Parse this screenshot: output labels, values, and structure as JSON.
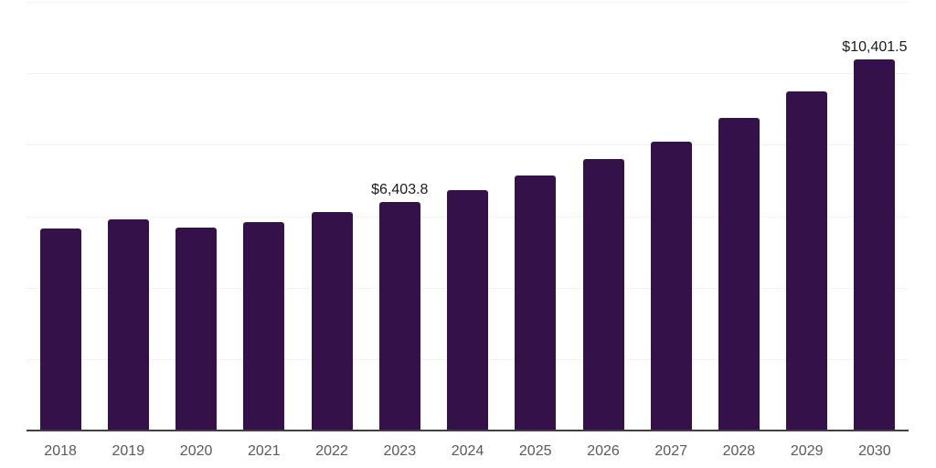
{
  "chart": {
    "bar_color": "#341149",
    "gridline_color": "#f2f2f2",
    "axis_color": "#404040",
    "tick_label_color": "#595959",
    "data_label_color": "#1a1a1a",
    "background_color": "#ffffff"
  },
  "chart_data": {
    "type": "bar",
    "title": "",
    "xlabel": "",
    "ylabel": "",
    "categories": [
      "2018",
      "2019",
      "2020",
      "2021",
      "2022",
      "2023",
      "2024",
      "2025",
      "2026",
      "2027",
      "2028",
      "2029",
      "2030"
    ],
    "values": [
      5660,
      5920,
      5690,
      5845,
      6125,
      6403.8,
      6740,
      7145,
      7605,
      8090,
      8750,
      9495,
      10401.5
    ],
    "data_labels": [
      null,
      null,
      null,
      null,
      null,
      "$6,403.8",
      null,
      null,
      null,
      null,
      null,
      null,
      "$10,401.5"
    ],
    "ylim": [
      0,
      12000
    ],
    "gridline_step": 2000,
    "grid": true,
    "legend": "none",
    "y_axis_tick_labels_visible": false,
    "bar_color": "#341149"
  }
}
